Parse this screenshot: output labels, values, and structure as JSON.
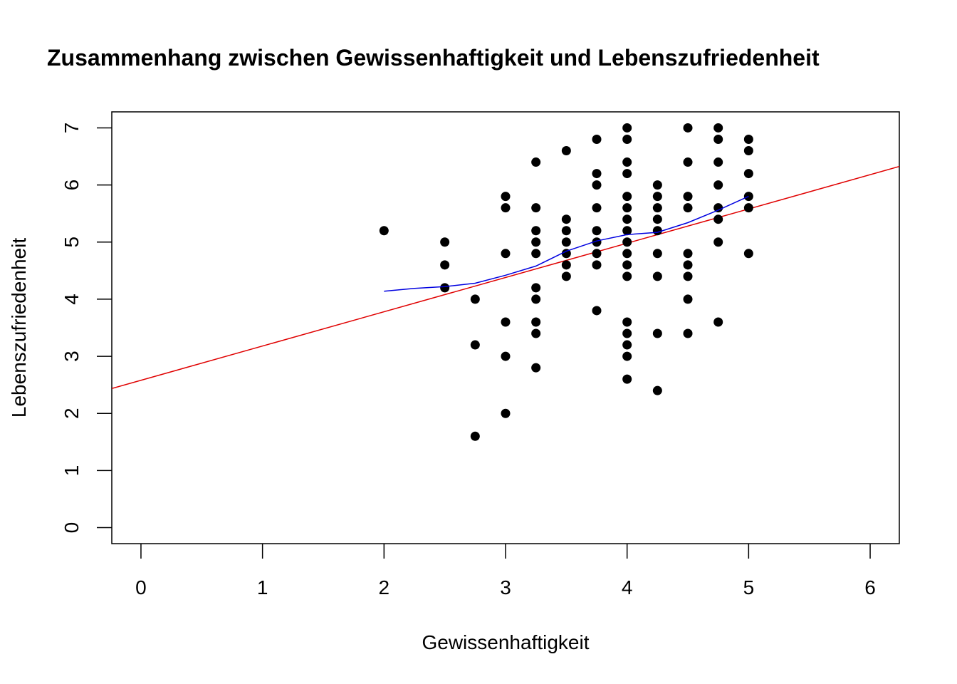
{
  "chart_data": {
    "type": "scatter",
    "title": "Zusammenhang zwischen Gewissenhaftigkeit und Lebenszufriedenheit",
    "xlabel": "Gewissenhaftigkeit",
    "ylabel": "Lebenszufriedenheit",
    "xlim": [
      -0.24,
      6.24
    ],
    "ylim": [
      -0.28,
      7.28
    ],
    "x_ticks": [
      0,
      1,
      2,
      3,
      4,
      5,
      6
    ],
    "y_ticks": [
      0,
      1,
      2,
      3,
      4,
      5,
      6,
      7
    ],
    "x_tick_labels": [
      "0",
      "1",
      "2",
      "3",
      "4",
      "5",
      "6"
    ],
    "y_tick_labels": [
      "0",
      "1",
      "2",
      "3",
      "4",
      "5",
      "6",
      "7"
    ],
    "grid": false,
    "points": [
      {
        "x": 2.0,
        "y": 5.2
      },
      {
        "x": 2.5,
        "y": 5.0
      },
      {
        "x": 2.5,
        "y": 4.6
      },
      {
        "x": 2.5,
        "y": 4.2
      },
      {
        "x": 2.75,
        "y": 4.0
      },
      {
        "x": 2.75,
        "y": 3.2
      },
      {
        "x": 2.75,
        "y": 1.6
      },
      {
        "x": 3.0,
        "y": 5.8
      },
      {
        "x": 3.0,
        "y": 5.6
      },
      {
        "x": 3.0,
        "y": 4.8
      },
      {
        "x": 3.0,
        "y": 3.6
      },
      {
        "x": 3.0,
        "y": 3.0
      },
      {
        "x": 3.0,
        "y": 2.0
      },
      {
        "x": 3.25,
        "y": 6.4
      },
      {
        "x": 3.25,
        "y": 5.6
      },
      {
        "x": 3.25,
        "y": 5.2
      },
      {
        "x": 3.25,
        "y": 5.0
      },
      {
        "x": 3.25,
        "y": 4.8
      },
      {
        "x": 3.25,
        "y": 4.2
      },
      {
        "x": 3.25,
        "y": 4.0
      },
      {
        "x": 3.25,
        "y": 3.6
      },
      {
        "x": 3.25,
        "y": 3.4
      },
      {
        "x": 3.25,
        "y": 2.8
      },
      {
        "x": 3.5,
        "y": 6.6
      },
      {
        "x": 3.5,
        "y": 5.4
      },
      {
        "x": 3.5,
        "y": 5.2
      },
      {
        "x": 3.5,
        "y": 5.0
      },
      {
        "x": 3.5,
        "y": 4.8
      },
      {
        "x": 3.5,
        "y": 4.6
      },
      {
        "x": 3.5,
        "y": 4.4
      },
      {
        "x": 3.75,
        "y": 6.8
      },
      {
        "x": 3.75,
        "y": 6.2
      },
      {
        "x": 3.75,
        "y": 6.0
      },
      {
        "x": 3.75,
        "y": 5.6
      },
      {
        "x": 3.75,
        "y": 5.2
      },
      {
        "x": 3.75,
        "y": 5.0
      },
      {
        "x": 3.75,
        "y": 4.8
      },
      {
        "x": 3.75,
        "y": 4.6
      },
      {
        "x": 3.75,
        "y": 3.8
      },
      {
        "x": 4.0,
        "y": 7.0
      },
      {
        "x": 4.0,
        "y": 6.8
      },
      {
        "x": 4.0,
        "y": 6.4
      },
      {
        "x": 4.0,
        "y": 6.2
      },
      {
        "x": 4.0,
        "y": 5.8
      },
      {
        "x": 4.0,
        "y": 5.6
      },
      {
        "x": 4.0,
        "y": 5.4
      },
      {
        "x": 4.0,
        "y": 5.2
      },
      {
        "x": 4.0,
        "y": 5.0
      },
      {
        "x": 4.0,
        "y": 4.8
      },
      {
        "x": 4.0,
        "y": 4.6
      },
      {
        "x": 4.0,
        "y": 4.4
      },
      {
        "x": 4.0,
        "y": 3.6
      },
      {
        "x": 4.0,
        "y": 3.4
      },
      {
        "x": 4.0,
        "y": 3.2
      },
      {
        "x": 4.0,
        "y": 3.0
      },
      {
        "x": 4.0,
        "y": 2.6
      },
      {
        "x": 4.25,
        "y": 6.0
      },
      {
        "x": 4.25,
        "y": 5.8
      },
      {
        "x": 4.25,
        "y": 5.6
      },
      {
        "x": 4.25,
        "y": 5.4
      },
      {
        "x": 4.25,
        "y": 5.2
      },
      {
        "x": 4.25,
        "y": 4.8
      },
      {
        "x": 4.25,
        "y": 4.4
      },
      {
        "x": 4.25,
        "y": 3.4
      },
      {
        "x": 4.25,
        "y": 2.4
      },
      {
        "x": 4.5,
        "y": 7.0
      },
      {
        "x": 4.5,
        "y": 6.4
      },
      {
        "x": 4.5,
        "y": 5.8
      },
      {
        "x": 4.5,
        "y": 5.6
      },
      {
        "x": 4.5,
        "y": 4.8
      },
      {
        "x": 4.5,
        "y": 4.6
      },
      {
        "x": 4.5,
        "y": 4.4
      },
      {
        "x": 4.5,
        "y": 4.0
      },
      {
        "x": 4.5,
        "y": 3.4
      },
      {
        "x": 4.75,
        "y": 7.0
      },
      {
        "x": 4.75,
        "y": 6.8
      },
      {
        "x": 4.75,
        "y": 6.4
      },
      {
        "x": 4.75,
        "y": 6.0
      },
      {
        "x": 4.75,
        "y": 5.6
      },
      {
        "x": 4.75,
        "y": 5.4
      },
      {
        "x": 4.75,
        "y": 5.0
      },
      {
        "x": 4.75,
        "y": 3.6
      },
      {
        "x": 5.0,
        "y": 6.8
      },
      {
        "x": 5.0,
        "y": 6.6
      },
      {
        "x": 5.0,
        "y": 6.2
      },
      {
        "x": 5.0,
        "y": 5.8
      },
      {
        "x": 5.0,
        "y": 5.6
      },
      {
        "x": 5.0,
        "y": 4.8
      }
    ],
    "regression_line": {
      "color": "#e00000",
      "intercept": 2.58,
      "slope": 0.6
    },
    "smooth_line": {
      "color": "#0000e0",
      "points": [
        {
          "x": 2.0,
          "y": 4.14
        },
        {
          "x": 2.25,
          "y": 4.19
        },
        {
          "x": 2.5,
          "y": 4.22
        },
        {
          "x": 2.75,
          "y": 4.28
        },
        {
          "x": 3.0,
          "y": 4.42
        },
        {
          "x": 3.25,
          "y": 4.58
        },
        {
          "x": 3.5,
          "y": 4.84
        },
        {
          "x": 3.75,
          "y": 5.02
        },
        {
          "x": 4.0,
          "y": 5.13
        },
        {
          "x": 4.25,
          "y": 5.17
        },
        {
          "x": 4.5,
          "y": 5.34
        },
        {
          "x": 4.75,
          "y": 5.56
        },
        {
          "x": 5.0,
          "y": 5.8
        }
      ]
    },
    "point_color": "#000000"
  }
}
